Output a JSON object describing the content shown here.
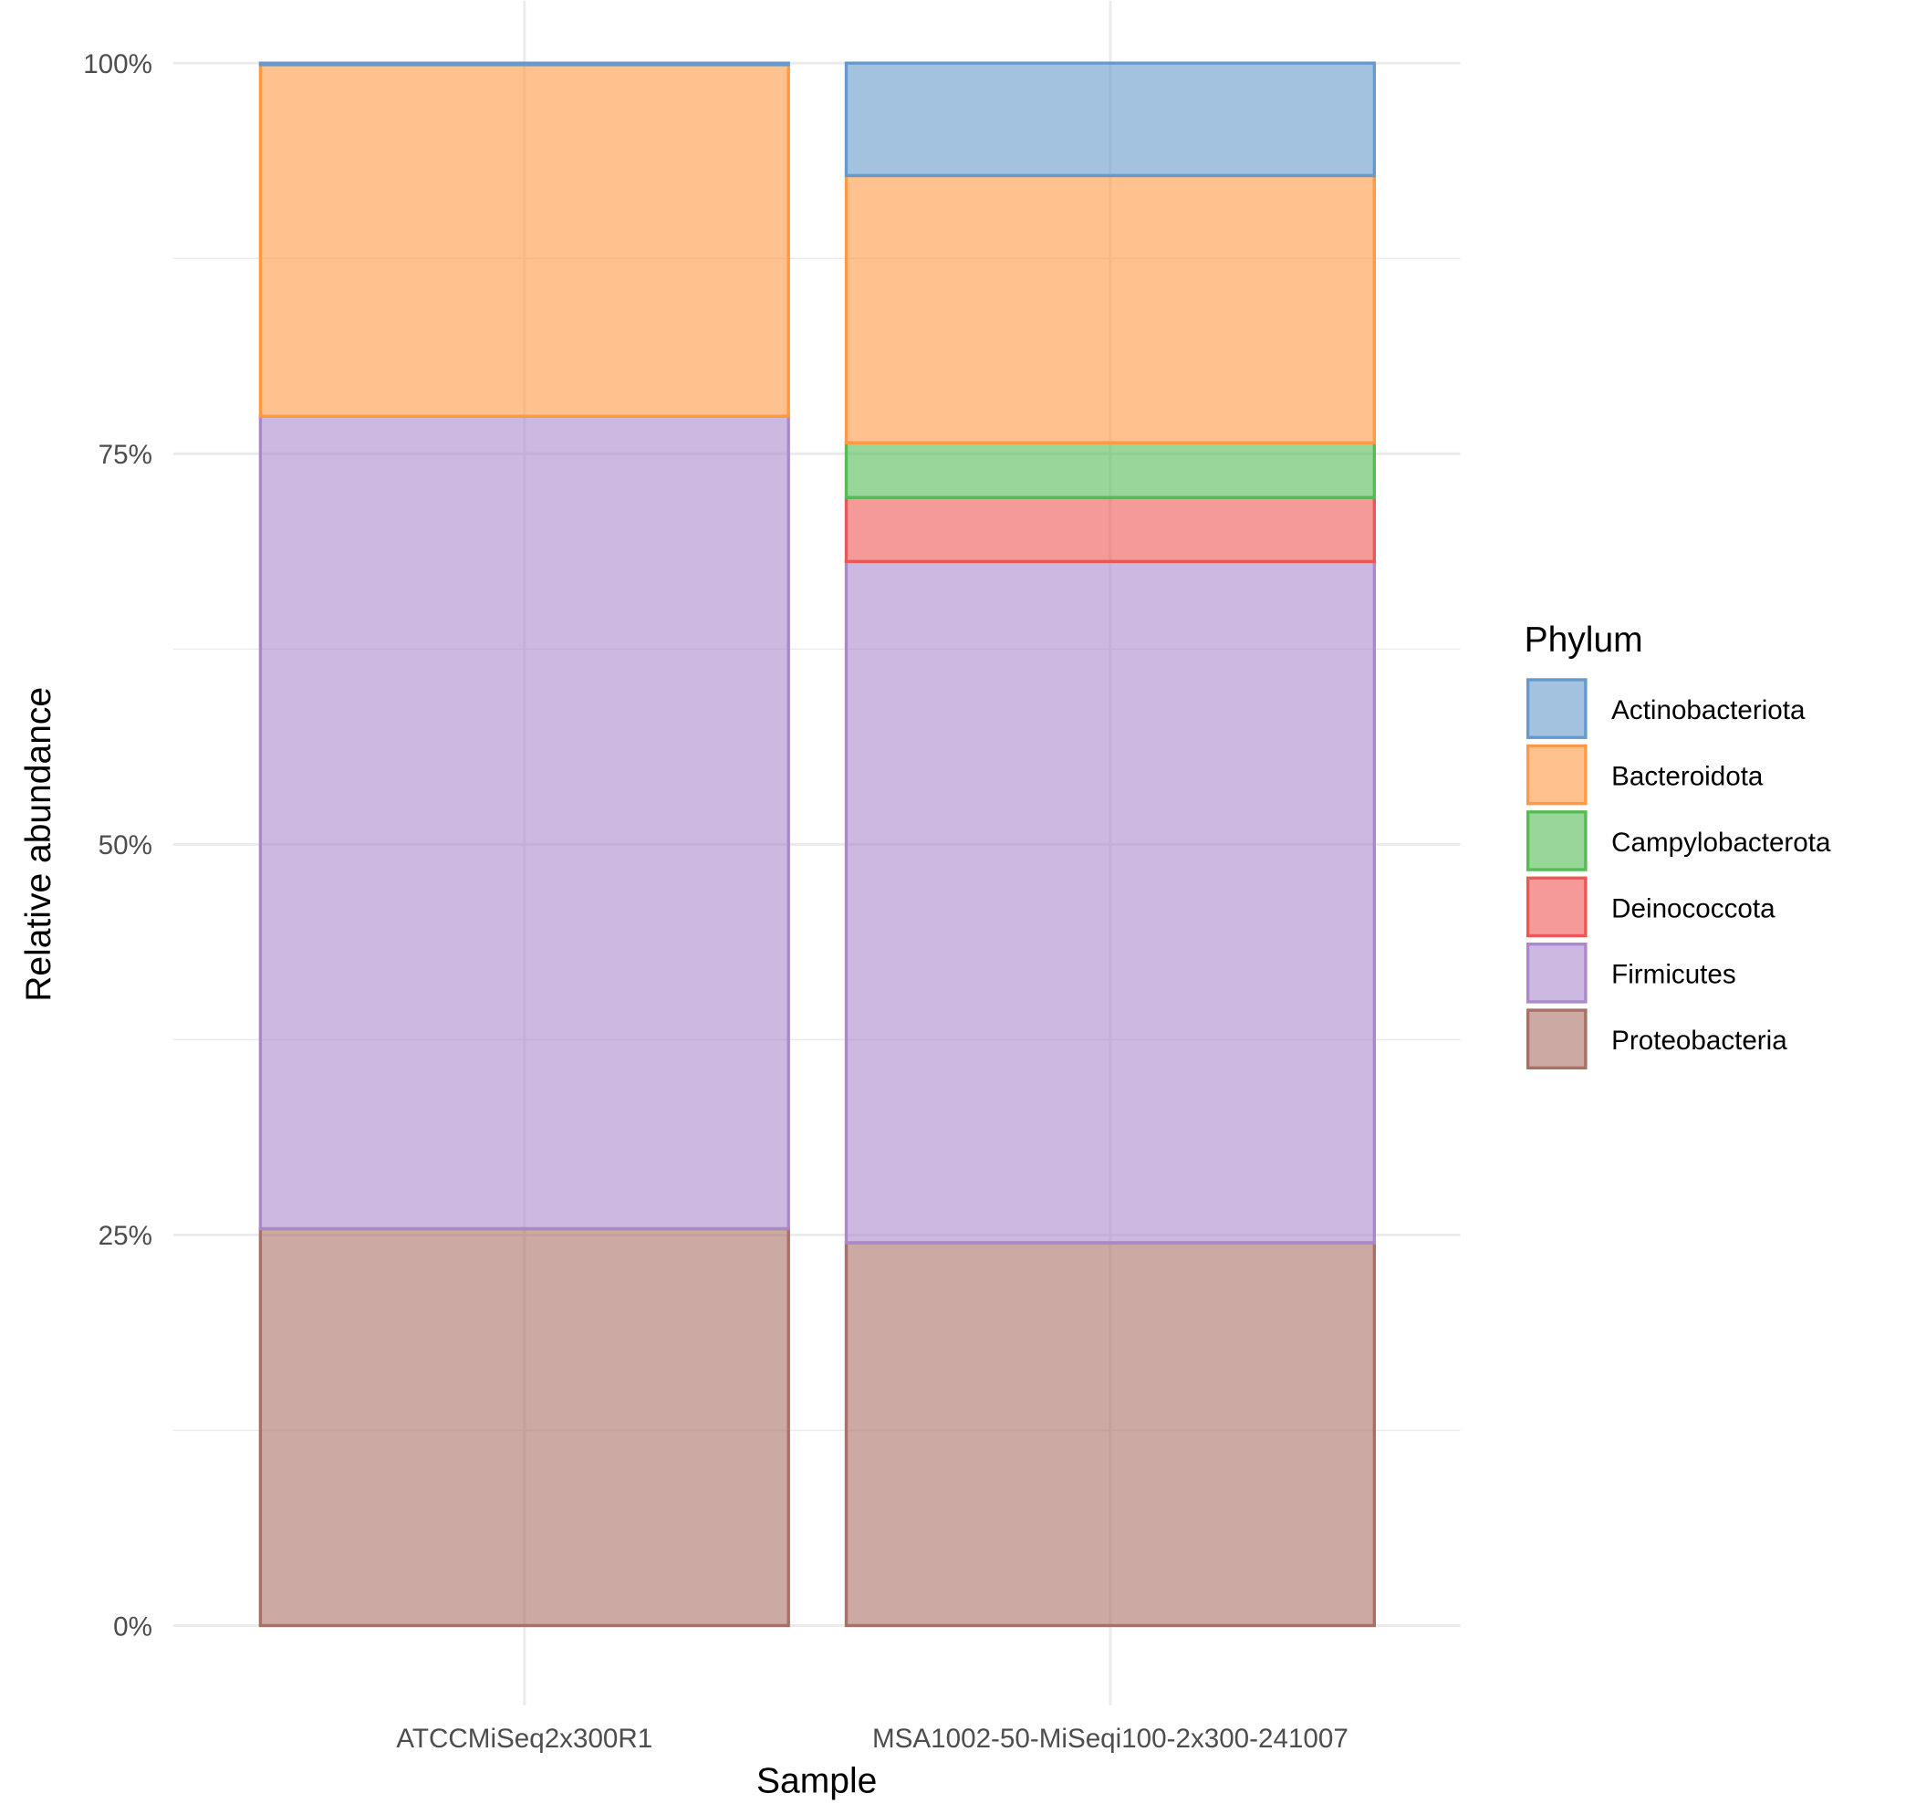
{
  "chart_data": {
    "type": "bar",
    "stacked": true,
    "xlabel": "Sample",
    "ylabel": "Relative abundance",
    "ylim": [
      0,
      100
    ],
    "yticks": [
      "0%",
      "25%",
      "50%",
      "75%",
      "100%"
    ],
    "categories": [
      "ATCCMiSeq2x300R1",
      "MSA1002-50-MiSeqi100-2x300-241007"
    ],
    "legend": {
      "title": "Phylum",
      "placement": "right"
    },
    "series": [
      {
        "name": "Actinobacteriota",
        "color": "#6699CC",
        "values": [
          0.1,
          7.2
        ]
      },
      {
        "name": "Bacteroidota",
        "color": "#FF9944",
        "values": [
          22.5,
          17.1
        ]
      },
      {
        "name": "Campylobacterota",
        "color": "#55BB55",
        "values": [
          0,
          3.5
        ]
      },
      {
        "name": "Deinococcota",
        "color": "#EE5555",
        "values": [
          0,
          4.1
        ]
      },
      {
        "name": "Firmicutes",
        "color": "#AA88CC",
        "values": [
          52.0,
          43.6
        ]
      },
      {
        "name": "Proteobacteria",
        "color": "#AA6F66",
        "values": [
          25.4,
          24.5
        ]
      }
    ]
  }
}
